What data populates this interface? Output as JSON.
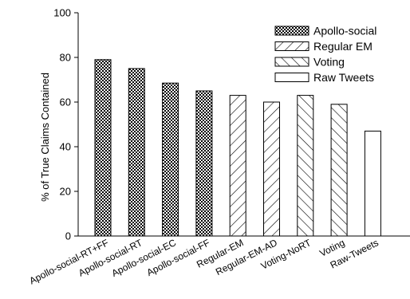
{
  "chart_data": {
    "type": "bar",
    "categories": [
      "Apollo-social-RT+FF",
      "Apollo-social-RT",
      "Apollo-social-EC",
      "Apollo-social-FF",
      "Regular-EM",
      "Regular-EM-AD",
      "Voting-NoRT",
      "Voting",
      "Raw-Tweets"
    ],
    "values": [
      79,
      75,
      68.5,
      65,
      63,
      60,
      63,
      59,
      47
    ],
    "bar_groups": [
      "Apollo-social",
      "Apollo-social",
      "Apollo-social",
      "Apollo-social",
      "Regular EM",
      "Regular EM",
      "Voting",
      "Voting",
      "Raw Tweets"
    ],
    "legend": [
      {
        "name": "Apollo-social",
        "pattern": "crosshatch"
      },
      {
        "name": "Regular EM",
        "pattern": "diagonal-forward"
      },
      {
        "name": "Voting",
        "pattern": "diagonal-backward"
      },
      {
        "name": "Raw Tweets",
        "pattern": "none"
      }
    ],
    "legend_position": "top-right",
    "title": "",
    "xlabel": "",
    "ylabel": "% of True Claims Contained",
    "ylim": [
      0,
      100
    ],
    "yticks": [
      "0",
      "20",
      "40",
      "60",
      "80",
      "100"
    ],
    "grid": false
  }
}
